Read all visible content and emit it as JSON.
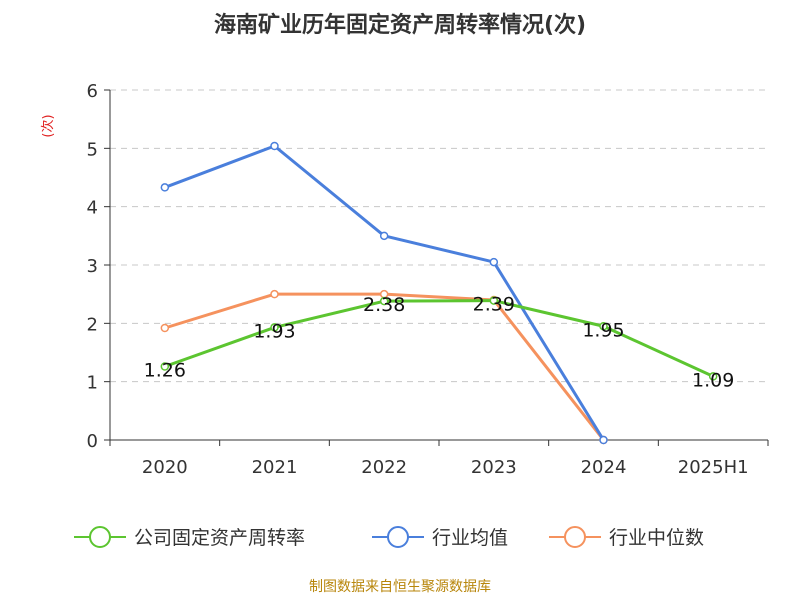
{
  "chart_data": {
    "type": "line",
    "title": "海南矿业历年固定资产周转率情况(次)",
    "ylabel": "(次)",
    "categories": [
      "2020",
      "2021",
      "2022",
      "2023",
      "2024",
      "2025H1"
    ],
    "ylim": [
      0,
      6
    ],
    "yticks": [
      0,
      1,
      2,
      3,
      4,
      5,
      6
    ],
    "grid": true,
    "legend_position": "bottom",
    "series": [
      {
        "name": "公司固定资产周转率",
        "color": "#5cc530",
        "values": [
          1.26,
          1.93,
          2.38,
          2.39,
          1.95,
          1.09
        ],
        "labels": [
          "1.26",
          "1.93",
          "2.38",
          "2.39",
          "1.95",
          "1.09"
        ]
      },
      {
        "name": "行业均值",
        "color": "#4a7fdc",
        "values": [
          4.33,
          5.04,
          3.5,
          3.05,
          0,
          null
        ],
        "labels": []
      },
      {
        "name": "行业中位数",
        "color": "#f5925e",
        "values": [
          1.92,
          2.5,
          2.5,
          2.4,
          0,
          null
        ],
        "labels": []
      }
    ]
  },
  "source": "制图数据来自恒生聚源数据库"
}
